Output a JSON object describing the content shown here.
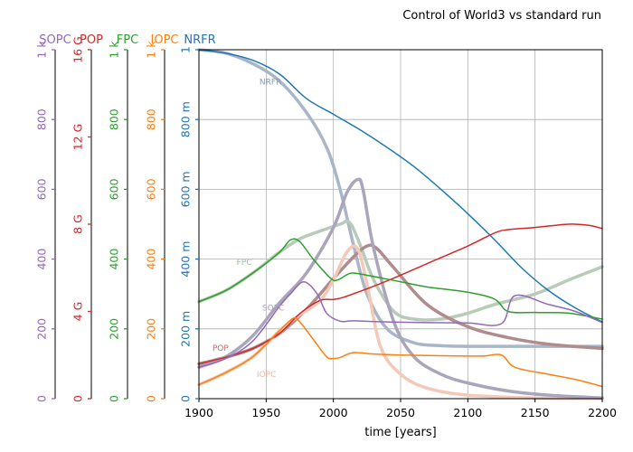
{
  "chart_data": {
    "type": "line",
    "title": "Control of World3 vs standard run",
    "xlabel": "time [years]",
    "xlim": [
      1900,
      2200
    ],
    "x_ticks": [
      "1900",
      "1950",
      "2000",
      "2050",
      "2100",
      "2150",
      "2200"
    ],
    "grid": true,
    "axes": [
      {
        "name": "SOPC",
        "color": "#9467bd",
        "ylim": [
          0,
          1000
        ],
        "tick_values": [
          0,
          200,
          400,
          600,
          800,
          1000
        ],
        "tick_labels": [
          "0",
          "200",
          "400",
          "600",
          "800",
          "1 k"
        ]
      },
      {
        "name": "POP",
        "color": "#d62728",
        "ylim": [
          0,
          16000000000
        ],
        "tick_values": [
          0,
          4000000000,
          8000000000,
          12000000000,
          16000000000
        ],
        "tick_labels": [
          "0",
          "4 G",
          "8 G",
          "12 G",
          "16 G"
        ]
      },
      {
        "name": "FPC",
        "color": "#2ca02c",
        "ylim": [
          0,
          1000
        ],
        "tick_values": [
          0,
          200,
          400,
          600,
          800,
          1000
        ],
        "tick_labels": [
          "0",
          "200",
          "400",
          "600",
          "800",
          "1 k"
        ]
      },
      {
        "name": "IOPC",
        "color": "#ff7f0e",
        "ylim": [
          0,
          1000
        ],
        "tick_values": [
          0,
          200,
          400,
          600,
          800,
          1000
        ],
        "tick_labels": [
          "0",
          "200",
          "400",
          "600",
          "800",
          "1 k"
        ]
      },
      {
        "name": "NRFR",
        "color": "#1f77b4",
        "ylim": [
          0,
          1
        ],
        "tick_values": [
          0,
          0.2,
          0.4,
          0.6,
          0.8,
          1
        ],
        "tick_labels": [
          "0",
          "200 m",
          "400 m",
          "600 m",
          "800 m",
          "1"
        ]
      }
    ],
    "series": [
      {
        "name": "NRFR",
        "color": "#1f77b4",
        "axis": 4,
        "x": [
          1900,
          1920,
          1940,
          1960,
          1980,
          2000,
          2020,
          2040,
          2060,
          2080,
          2100,
          2120,
          2140,
          2160,
          2180,
          2200
        ],
        "y": [
          1.0,
          0.99,
          0.97,
          0.93,
          0.86,
          0.815,
          0.77,
          0.72,
          0.665,
          0.6,
          0.53,
          0.455,
          0.375,
          0.31,
          0.26,
          0.22
        ]
      },
      {
        "name": "POP",
        "color": "#d62728",
        "axis": 1,
        "x": [
          1900,
          1920,
          1940,
          1960,
          1975,
          1990,
          2000,
          2010,
          2040,
          2070,
          2100,
          2120,
          2130,
          2150,
          2175,
          2190,
          2200
        ],
        "y": [
          1600000000,
          1900000000,
          2300000000,
          3000000000,
          3900000000,
          4500000000,
          4550000000,
          4700000000,
          5400000000,
          6200000000,
          7000000000,
          7600000000,
          7750000000,
          7850000000,
          8000000000,
          7950000000,
          7800000000
        ]
      },
      {
        "name": "FPC",
        "color": "#2ca02c",
        "axis": 2,
        "x": [
          1900,
          1920,
          1940,
          1960,
          1968,
          1975,
          1985,
          1998,
          2003,
          2010,
          2015,
          2030,
          2050,
          2070,
          2100,
          2120,
          2130,
          2150,
          2175,
          2200
        ],
        "y": [
          278,
          310,
          360,
          420,
          455,
          450,
          400,
          345,
          340,
          355,
          360,
          350,
          335,
          320,
          305,
          285,
          250,
          247,
          245,
          228
        ]
      },
      {
        "name": "IOPC",
        "color": "#ff7f0e",
        "axis": 3,
        "x": [
          1900,
          1920,
          1940,
          1960,
          1970,
          1975,
          1985,
          1995,
          2000,
          2005,
          2015,
          2030,
          2050,
          2080,
          2110,
          2125,
          2135,
          2160,
          2180,
          2200
        ],
        "y": [
          40,
          75,
          120,
          195,
          230,
          220,
          170,
          120,
          115,
          118,
          132,
          128,
          125,
          123,
          122,
          125,
          90,
          70,
          55,
          35
        ]
      },
      {
        "name": "SOPC",
        "color": "#9467bd",
        "axis": 0,
        "x": [
          1900,
          1920,
          1940,
          1960,
          1968,
          1978,
          1988,
          1995,
          2005,
          2015,
          2040,
          2070,
          2100,
          2125,
          2135,
          2160,
          2180,
          2200
        ],
        "y": [
          90,
          115,
          165,
          265,
          300,
          335,
          300,
          245,
          222,
          223,
          220,
          218,
          217,
          215,
          295,
          270,
          250,
          218
        ]
      },
      {
        "name": "NRFR",
        "color": "#a8b6c8",
        "standard_run": true,
        "axis": 4,
        "x": [
          1900,
          1920,
          1940,
          1960,
          1980,
          1995,
          2005,
          2015,
          2025,
          2040,
          2060,
          2080,
          2100,
          2150,
          2200
        ],
        "y": [
          1.0,
          0.99,
          0.96,
          0.91,
          0.82,
          0.72,
          0.6,
          0.44,
          0.3,
          0.2,
          0.16,
          0.152,
          0.15,
          0.15,
          0.15
        ]
      },
      {
        "name": "FPC",
        "color": "#b8cbb8",
        "standard_run": true,
        "axis": 2,
        "x": [
          1900,
          1920,
          1940,
          1960,
          1975,
          1990,
          2005,
          2012,
          2020,
          2030,
          2045,
          2060,
          2080,
          2100,
          2120,
          2150,
          2175,
          2200
        ],
        "y": [
          278,
          310,
          360,
          420,
          458,
          480,
          500,
          505,
          440,
          340,
          250,
          228,
          228,
          245,
          270,
          300,
          340,
          378
        ]
      },
      {
        "name": "POP",
        "color": "#b08c8c",
        "standard_run": true,
        "axis": 1,
        "x": [
          1900,
          1920,
          1940,
          1960,
          1980,
          2000,
          2015,
          2025,
          2032,
          2045,
          2070,
          2100,
          2130,
          2160,
          2200
        ],
        "y": [
          1600000000,
          1900000000,
          2300000000,
          3000000000,
          4100000000,
          5500000000,
          6500000000,
          7000000000,
          6900000000,
          6000000000,
          4300000000,
          3300000000,
          2800000000,
          2500000000,
          2300000000
        ]
      },
      {
        "name": "IOPC",
        "color": "#f5c9b8",
        "standard_run": true,
        "axis": 3,
        "x": [
          1900,
          1920,
          1940,
          1960,
          1975,
          1990,
          2000,
          2010,
          2018,
          2025,
          2035,
          2050,
          2070,
          2100,
          2150,
          2200
        ],
        "y": [
          40,
          75,
          120,
          195,
          240,
          280,
          340,
          420,
          430,
          330,
          150,
          70,
          30,
          10,
          2,
          0
        ]
      },
      {
        "name": "SOPC",
        "color": "#a9a6bc",
        "standard_run": true,
        "axis": 0,
        "x": [
          1900,
          1920,
          1940,
          1960,
          1980,
          2000,
          2010,
          2018,
          2022,
          2030,
          2045,
          2060,
          2080,
          2100,
          2130,
          2160,
          2200
        ],
        "y": [
          90,
          120,
          180,
          275,
          360,
          490,
          590,
          628,
          600,
          430,
          220,
          120,
          70,
          45,
          22,
          10,
          2
        ]
      }
    ],
    "annotations": [
      {
        "text": "NRFR",
        "x": 1945,
        "y": 0.9,
        "axis": 4,
        "color": "#8a99b0"
      },
      {
        "text": "FPC",
        "x": 1928,
        "y": 383,
        "axis": 2,
        "color": "#9fbc9f"
      },
      {
        "text": "SOPC",
        "x": 1947,
        "y": 252,
        "axis": 0,
        "color": "#a99fc4"
      },
      {
        "text": "POP",
        "x": 1910,
        "y": 2200000000,
        "axis": 1,
        "color": "#b07070"
      },
      {
        "text": "IOPC",
        "x": 1943,
        "y": 62,
        "axis": 3,
        "color": "#f2b8a0"
      }
    ]
  }
}
